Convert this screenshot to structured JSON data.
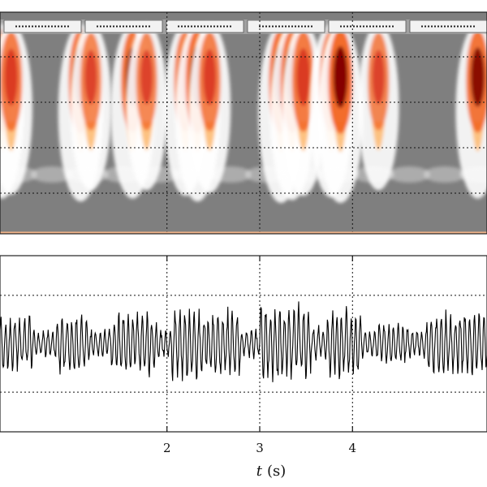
{
  "chart_data": [
    {
      "type": "heatmap",
      "title": "",
      "xlabel": "",
      "ylabel": "",
      "xlim": [
        0.2,
        5.45
      ],
      "grid": true,
      "colormap": [
        "#7f7f7f",
        "#ffffff",
        "#fdbf7a",
        "#f26522",
        "#d7301f",
        "#7f0000"
      ],
      "bursts": [
        {
          "t": 0.22,
          "intensity": 0.85
        },
        {
          "t": 0.32,
          "intensity": 0.7
        },
        {
          "t": 1.07,
          "intensity": 0.95
        },
        {
          "t": 1.18,
          "intensity": 0.55
        },
        {
          "t": 1.63,
          "intensity": 0.85
        },
        {
          "t": 1.78,
          "intensity": 0.55
        },
        {
          "t": 2.2,
          "intensity": 0.75
        },
        {
          "t": 2.33,
          "intensity": 0.95
        },
        {
          "t": 2.46,
          "intensity": 0.65
        },
        {
          "t": 3.23,
          "intensity": 1.0
        },
        {
          "t": 3.35,
          "intensity": 0.9
        },
        {
          "t": 3.47,
          "intensity": 0.75
        },
        {
          "t": 3.77,
          "intensity": 0.8
        },
        {
          "t": 3.87,
          "intensity": 1.0
        },
        {
          "t": 4.28,
          "intensity": 0.55
        },
        {
          "t": 5.35,
          "intensity": 0.85
        }
      ]
    },
    {
      "type": "line",
      "title": "",
      "xlabel": "t (s)",
      "xlabel_var": "t",
      "xlabel_unit": "(s)",
      "ylabel": "",
      "xlim": [
        0.2,
        5.45
      ],
      "ylim": [
        -1,
        1
      ],
      "xticks": [
        2,
        3,
        4
      ],
      "xtick_labels": [
        "2",
        "3",
        "4"
      ],
      "grid": true,
      "line_color": "#000000",
      "series": [
        {
          "segments": [
            {
              "t0": 0.2,
              "t1": 0.55,
              "amp": 0.3
            },
            {
              "t0": 0.55,
              "t1": 0.8,
              "amp": 0.14
            },
            {
              "t0": 0.8,
              "t1": 1.15,
              "amp": 0.33
            },
            {
              "t0": 1.15,
              "t1": 1.4,
              "amp": 0.16
            },
            {
              "t0": 1.4,
              "t1": 1.9,
              "amp": 0.35
            },
            {
              "t0": 1.9,
              "t1": 2.05,
              "amp": 0.15
            },
            {
              "t0": 2.05,
              "t1": 2.8,
              "amp": 0.38
            },
            {
              "t0": 2.8,
              "t1": 3.0,
              "amp": 0.16
            },
            {
              "t0": 3.0,
              "t1": 3.55,
              "amp": 0.42
            },
            {
              "t0": 3.55,
              "t1": 3.72,
              "amp": 0.18
            },
            {
              "t0": 3.72,
              "t1": 4.1,
              "amp": 0.36
            },
            {
              "t0": 4.1,
              "t1": 4.25,
              "amp": 0.15
            },
            {
              "t0": 4.25,
              "t1": 4.6,
              "amp": 0.22
            },
            {
              "t0": 4.6,
              "t1": 4.8,
              "amp": 0.16
            },
            {
              "t0": 4.8,
              "t1": 5.45,
              "amp": 0.34
            }
          ]
        }
      ]
    }
  ]
}
